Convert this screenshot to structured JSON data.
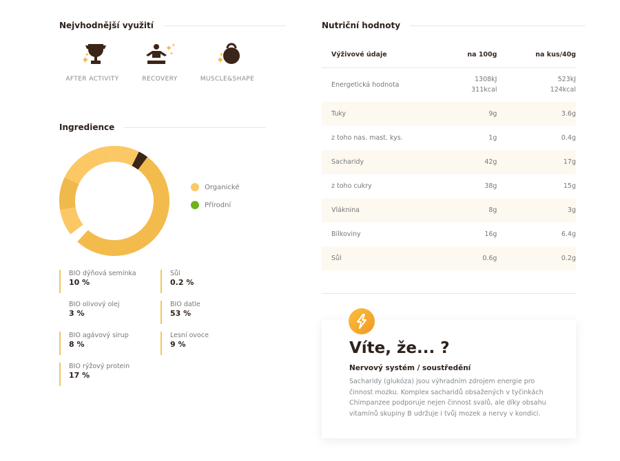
{
  "usage": {
    "title": "Nejvhodnější využití",
    "items": [
      {
        "label": "AFTER ACTIVITY",
        "icon": "trophy-icon"
      },
      {
        "label": "RECOVERY",
        "icon": "meditation-icon"
      },
      {
        "label": "MUSCLE&SHAPE",
        "icon": "kettlebell-icon"
      }
    ]
  },
  "ingredients": {
    "title": "Ingredience",
    "legend": [
      {
        "label": "Organické",
        "color": "#fcc866"
      },
      {
        "label": "Přírodní",
        "color": "#6fb21c"
      }
    ],
    "items": [
      {
        "name": "BIO dýňová semínka",
        "value": "10 %"
      },
      {
        "name": "Sůl",
        "value": "0.2 %"
      },
      {
        "name": "BIO olivový olej",
        "value": "3 %"
      },
      {
        "name": "BIO datle",
        "value": "53 %"
      },
      {
        "name": "BIO agávový sirup",
        "value": "8 %"
      },
      {
        "name": "Lesní ovoce",
        "value": "9 %"
      },
      {
        "name": "BIO rýžový protein",
        "value": "17 %"
      }
    ]
  },
  "chart_data": {
    "type": "pie",
    "variant": "donut",
    "slices": [
      {
        "label": "BIO datle",
        "value": 53,
        "color": "#f2bb4c"
      },
      {
        "label": "BIO olivový olej",
        "value": 3,
        "color": "#ffffff"
      },
      {
        "label": "BIO agávový sirup",
        "value": 8,
        "color": "#fcc866"
      },
      {
        "label": "BIO dýňová semínka",
        "value": 10,
        "color": "#f0b94b"
      },
      {
        "label": "BIO rýžový protein",
        "value": 17,
        "color": "#fcc866"
      },
      {
        "label": "Lesní ovoce",
        "value": 9,
        "color": "#fcc866"
      },
      {
        "label": "Sůl",
        "value": 0.2,
        "color": "#3b2418"
      }
    ]
  },
  "nutrition": {
    "title": "Nutriční hodnoty",
    "headers": [
      "Výživové údaje",
      "na 100g",
      "na kus/40g"
    ],
    "rows": [
      {
        "name": "Energetická hodnota",
        "per100": "1308kJ",
        "per100b": "311kcal",
        "perPiece": "523kJ",
        "perPieceb": "124kcal"
      },
      {
        "name": "Tuky",
        "per100": "9g",
        "perPiece": "3.6g"
      },
      {
        "name": "z toho nas. mast. kys.",
        "per100": "1g",
        "perPiece": "0.4g"
      },
      {
        "name": "Sacharidy",
        "per100": "42g",
        "perPiece": "17g"
      },
      {
        "name": "z toho cukry",
        "per100": "38g",
        "perPiece": "15g"
      },
      {
        "name": "Vláknina",
        "per100": "8g",
        "perPiece": "3g"
      },
      {
        "name": "Bílkoviny",
        "per100": "16g",
        "perPiece": "6.4g"
      },
      {
        "name": "Sůl",
        "per100": "0.6g",
        "perPiece": "0.2g"
      }
    ]
  },
  "fact": {
    "title": "Víte, že... ?",
    "subtitle": "Nervový systém / soustředění",
    "text": "Sacharidy (glukóza) jsou výhradním zdrojem energie pro činnost mozku. Komplex sacharidů obsažených v tyčinkách Chimpanzee podporuje nejen činnost svalů, ale díky obsahu vitamínů skupiny B udržuje i tvůj mozek a nervy v kondici.",
    "icon": "lightning-icon"
  }
}
